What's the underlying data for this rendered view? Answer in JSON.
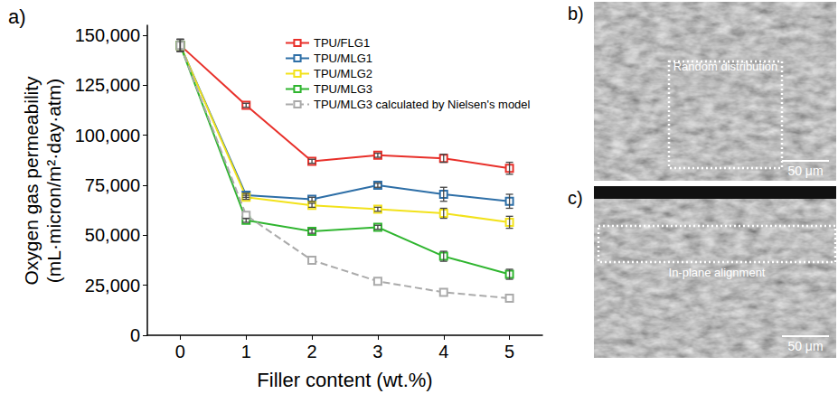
{
  "chart_data": {
    "type": "line",
    "title": "a)",
    "x_label": "Filler content (wt.%)",
    "y_label": "Oxygen gas permeability (mL·micron/m²·day·atm)",
    "xlim": [
      -0.5,
      5.5
    ],
    "xticks": [
      0,
      1,
      2,
      3,
      4,
      5
    ],
    "ylim": [
      0,
      155000
    ],
    "yticks": [
      0,
      25000,
      50000,
      75000,
      100000,
      125000,
      150000
    ],
    "grid": false,
    "legend": "top-right",
    "series": [
      {
        "name": "TPU/FLG1",
        "color": "#e8302a",
        "marker": "square",
        "line_style": "solid",
        "x": [
          0,
          1,
          2,
          3,
          4,
          5
        ],
        "values": [
          145000,
          115000,
          87000,
          90000,
          88500,
          83500
        ],
        "errors": [
          3000,
          1000,
          1000,
          1000,
          2000,
          3000
        ]
      },
      {
        "name": "TPU/MLG1",
        "color": "#2e6fa7",
        "marker": "square",
        "line_style": "solid",
        "x": [
          0,
          1,
          2,
          3,
          4,
          5
        ],
        "values": [
          145000,
          70000,
          68000,
          75000,
          70500,
          67000
        ],
        "errors": [
          3000,
          1000,
          1000,
          1000,
          3500,
          3500
        ]
      },
      {
        "name": "TPU/MLG2",
        "color": "#f2e21b",
        "marker": "square",
        "line_style": "solid",
        "x": [
          0,
          1,
          2,
          3,
          4,
          5
        ],
        "values": [
          145000,
          69000,
          65000,
          63000,
          61000,
          56500
        ],
        "errors": [
          3000,
          1000,
          1000,
          1000,
          2500,
          3000
        ]
      },
      {
        "name": "TPU/MLG3",
        "color": "#2fb52f",
        "marker": "square",
        "line_style": "solid",
        "x": [
          0,
          1,
          2,
          3,
          4,
          5
        ],
        "values": [
          145000,
          57500,
          52000,
          54000,
          39500,
          30500
        ],
        "errors": [
          3000,
          1000,
          1000,
          1000,
          2500,
          2500
        ]
      },
      {
        "name": "TPU/MLG3 calculated by Nielsen's model",
        "color": "#aaaaaa",
        "marker": "square",
        "line_style": "dashed",
        "x": [
          0,
          1,
          2,
          3,
          4,
          5
        ],
        "values": [
          145000,
          60000,
          37500,
          27000,
          21500,
          18500
        ]
      }
    ]
  },
  "panels": [
    {
      "label": "b)",
      "annotation": "Random distribution",
      "scale_bar": "50 μm"
    },
    {
      "label": "c)",
      "annotation": "In-plane alignment",
      "scale_bar": "50 μm"
    }
  ]
}
